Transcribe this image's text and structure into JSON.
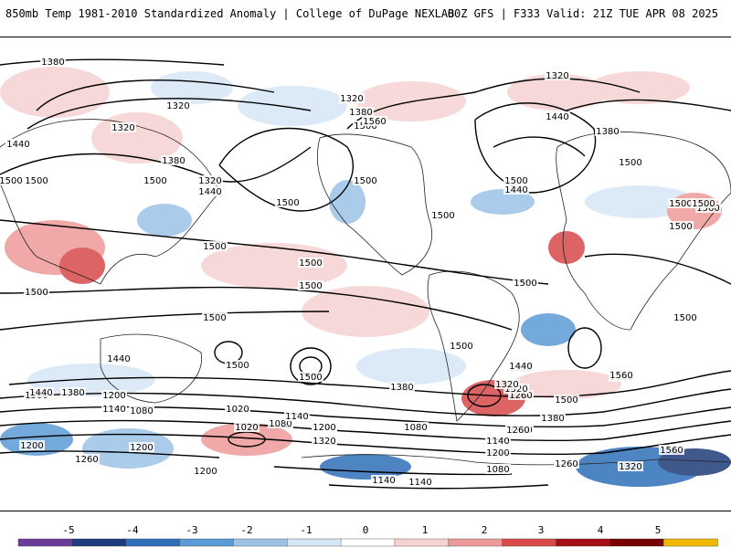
{
  "header": {
    "title_left": "850mb Temp 1981-2010 Standardized Anomaly | College of DuPage NEXLAB",
    "title_right": "00Z GFS | F333 Valid: 21Z TUE APR 08 2025"
  },
  "colorbar": {
    "ticks": [
      "-5",
      "-4",
      "-3",
      "-2",
      "-1",
      "0",
      "1",
      "2",
      "3",
      "4",
      "5"
    ],
    "colors": [
      "#6a3d9a",
      "#1f3d7a",
      "#2f6fb8",
      "#5b9bd5",
      "#9cc3e6",
      "#d6e6f5",
      "#ffffff",
      "#f6d2d2",
      "#ee9999",
      "#d84a4a",
      "#a50f15",
      "#7a0000",
      "#f2b700"
    ]
  },
  "contour_labels": [
    "1380",
    "1320",
    "1320",
    "1500",
    "1440",
    "1380",
    "1320",
    "1500",
    "1440",
    "1500",
    "1500",
    "1500",
    "1500",
    "1500",
    "1560",
    "1380",
    "1320",
    "1320",
    "1440",
    "1380",
    "1500",
    "1500",
    "1560",
    "1500",
    "1500",
    "1500",
    "1440",
    "1500",
    "1500",
    "1500",
    "1500",
    "1500",
    "1440",
    "1500",
    "1500",
    "1500",
    "1500",
    "1560",
    "1500",
    "1500",
    "1440",
    "1380",
    "1320",
    "1260",
    "1200",
    "1140",
    "1080",
    "1020",
    "1140",
    "1320",
    "1200",
    "1260",
    "1200",
    "1020",
    "1080",
    "1200",
    "1140",
    "1260",
    "1320",
    "1380",
    "1440",
    "1560",
    "1320",
    "1380",
    "1260",
    "1200",
    "1140",
    "1080",
    "1140",
    "1200",
    "1140",
    "1080",
    "1260",
    "1320",
    "1560",
    "1500"
  ]
}
